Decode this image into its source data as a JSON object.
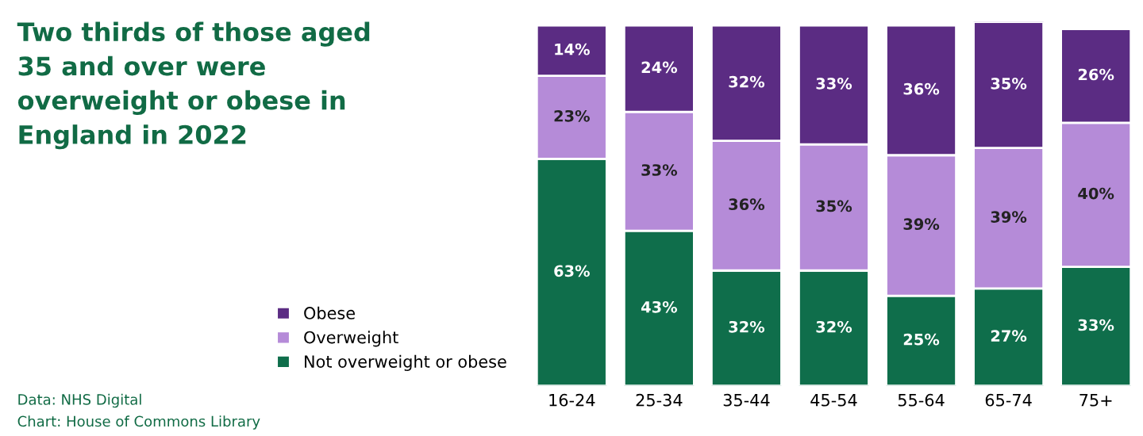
{
  "chart_data": {
    "type": "bar",
    "stacked": true,
    "legend": "left",
    "tick_labels": "x",
    "grid": false,
    "title": "Two thirds of those aged 35 and over were overweight or obese in England in 2022",
    "annotations": [
      "Data: NHS Digital",
      "Chart: House of Commons Library"
    ],
    "categories": [
      "16-24",
      "25-34",
      "35-44",
      "45-54",
      "55-64",
      "65-74",
      "75+"
    ],
    "series": [
      {
        "name": "Not overweight or obese",
        "color": "#0f6e4b",
        "values": [
          63,
          43,
          32,
          32,
          25,
          27,
          33
        ],
        "value_labels": [
          "63%",
          "43%",
          "32%",
          "32%",
          "25%",
          "27%",
          "33%"
        ]
      },
      {
        "name": "Overweight",
        "color": "#b58bd8",
        "values": [
          23,
          33,
          36,
          35,
          39,
          39,
          40
        ],
        "value_labels": [
          "23%",
          "33%",
          "36%",
          "35%",
          "39%",
          "39%",
          "40%"
        ]
      },
      {
        "name": "Obese",
        "color": "#5b2c83",
        "values": [
          14,
          24,
          32,
          33,
          36,
          35,
          26
        ],
        "value_labels": [
          "14%",
          "24%",
          "32%",
          "33%",
          "36%",
          "35%",
          "26%"
        ]
      }
    ]
  }
}
